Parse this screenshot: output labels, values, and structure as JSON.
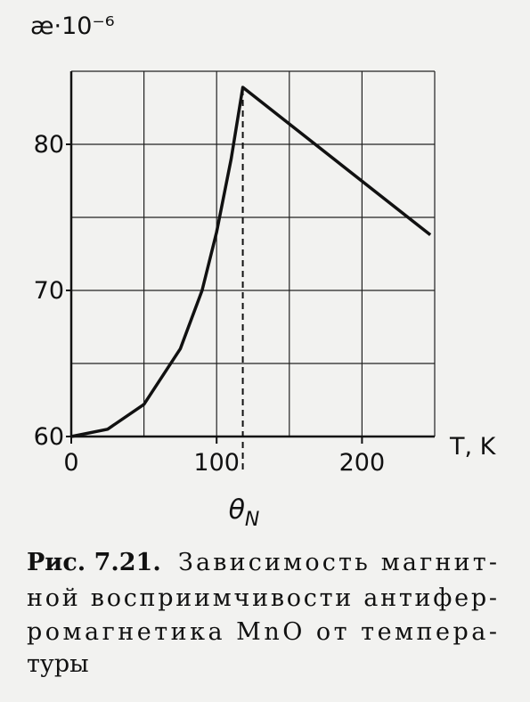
{
  "chart_data": {
    "type": "line",
    "y_label": "æ·10⁻⁶",
    "x_label": "T, K",
    "x": [
      0,
      25,
      50,
      75,
      90,
      100,
      110,
      118,
      247
    ],
    "series": [
      {
        "color": "#111111",
        "values": [
          60,
          60.5,
          62.2,
          66,
          70,
          74,
          79,
          83.9,
          73.8
        ]
      }
    ],
    "xlim": [
      0,
      250
    ],
    "ylim": [
      60,
      85
    ],
    "xticks": [
      0,
      100,
      200
    ],
    "yticks": [
      60,
      70,
      80
    ],
    "xgrid": [
      0,
      50,
      100,
      150,
      200,
      250
    ],
    "ygrid": [
      60,
      65,
      70,
      75,
      80,
      85
    ],
    "annotation": {
      "symbol": "θ",
      "subscript": "N",
      "x": 118
    }
  },
  "caption": {
    "label": "Рис. 7.21.",
    "lines": [
      "Зависимость магнит-",
      "ной восприимчивости антифер-",
      "ромагнетика MnO от темпера-",
      "туры"
    ]
  }
}
